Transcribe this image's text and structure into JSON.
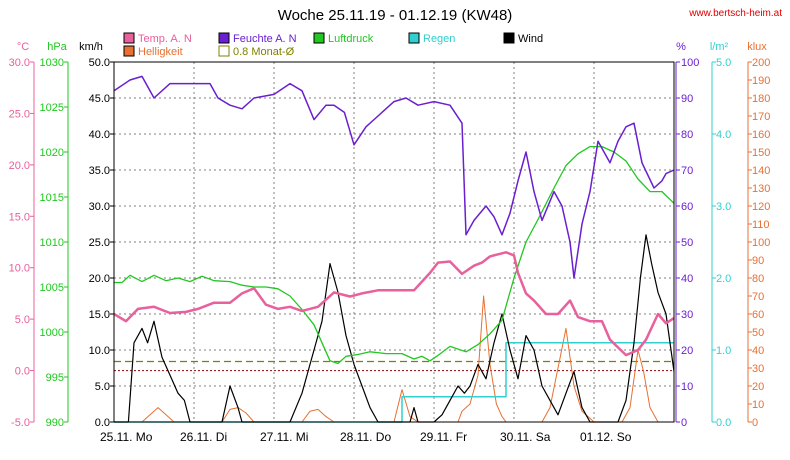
{
  "chart_data": {
    "type": "line",
    "title": "Woche 25.11.19 - 01.12.19 (KW48)",
    "source": "www.bertsch-heim.at",
    "colors": {
      "temp": "#e8609c",
      "feuchte": "#6a1fd0",
      "luftdruck": "#20c820",
      "wind": "#000000",
      "helligkeit": "#e87030",
      "regen": "#30d0d0",
      "monat": "#808000",
      "zero": "#900000",
      "grid": "#808080"
    },
    "legend": [
      {
        "key": "temp",
        "label": "Temp. A. N",
        "color": "#e8609c",
        "style": "fill"
      },
      {
        "key": "feuchte",
        "label": "Feuchte A. N",
        "color": "#6a1fd0",
        "style": "fill"
      },
      {
        "key": "luftdruck",
        "label": "Luftdruck",
        "color": "#20c820",
        "style": "fill"
      },
      {
        "key": "regen",
        "label": "Regen",
        "color": "#30d0d0",
        "style": "fill"
      },
      {
        "key": "wind",
        "label": "Wind",
        "color": "#000000",
        "style": "fill"
      },
      {
        "key": "helligkeit",
        "label": "Helligkeit",
        "color": "#e87030",
        "style": "fill"
      },
      {
        "key": "monat",
        "label": "0.8 Monat-Ø",
        "color": "#808000",
        "style": "outline"
      }
    ],
    "axes": {
      "temp": {
        "unit": "°C",
        "ticks": [
          "30.0",
          "25.0",
          "20.0",
          "15.0",
          "10.0",
          "5.0",
          "0.0",
          "-5.0"
        ],
        "min": -5,
        "max": 30,
        "color": "#e8609c"
      },
      "luftdruck": {
        "unit": "hPa",
        "ticks": [
          "1030",
          "1025",
          "1020",
          "1015",
          "1010",
          "1005",
          "1000",
          "995",
          "990"
        ],
        "min": 990,
        "max": 1030,
        "color": "#20c820"
      },
      "wind": {
        "unit": "km/h",
        "ticks": [
          "50.0",
          "45.0",
          "40.0",
          "35.0",
          "30.0",
          "25.0",
          "20.0",
          "15.0",
          "10.0",
          "5.0",
          "0.0"
        ],
        "min": 0,
        "max": 50,
        "color": "#000000"
      },
      "feuchte": {
        "unit": "%",
        "ticks": [
          "100",
          "90",
          "80",
          "70",
          "60",
          "50",
          "40",
          "30",
          "20",
          "10",
          "0"
        ],
        "min": 0,
        "max": 100,
        "color": "#6a1fd0"
      },
      "regen": {
        "unit": "l/m²",
        "ticks": [
          "5.0",
          "4.0",
          "3.0",
          "2.0",
          "1.0",
          "0.0"
        ],
        "min": 0,
        "max": 5,
        "color": "#30d0d0"
      },
      "helligkeit": {
        "unit": "klux",
        "ticks": [
          "200",
          "190",
          "180",
          "170",
          "160",
          "150",
          "140",
          "130",
          "120",
          "110",
          "100",
          "90",
          "80",
          "70",
          "60",
          "50",
          "40",
          "30",
          "20",
          "10",
          "0"
        ],
        "min": 0,
        "max": 200,
        "color": "#e87030"
      }
    },
    "x_labels": [
      "25.11. Mo",
      "26.11. Di",
      "27.11. Mi",
      "28.11. Do",
      "29.11. Fr",
      "30.11. Sa",
      "01.12. So"
    ],
    "x_range": [
      0,
      7
    ],
    "grid": true,
    "reference_lines": {
      "monat_avg_wind_kmh": 8.4,
      "temp_zero_c": 0
    },
    "series": {
      "feuchte": [
        [
          0,
          92
        ],
        [
          0.2,
          95
        ],
        [
          0.35,
          96
        ],
        [
          0.5,
          90
        ],
        [
          0.7,
          94
        ],
        [
          1.0,
          94
        ],
        [
          1.2,
          94
        ],
        [
          1.3,
          90
        ],
        [
          1.45,
          88
        ],
        [
          1.6,
          87
        ],
        [
          1.75,
          90
        ],
        [
          2.0,
          91
        ],
        [
          2.2,
          94
        ],
        [
          2.35,
          92
        ],
        [
          2.5,
          84
        ],
        [
          2.65,
          88
        ],
        [
          2.75,
          88
        ],
        [
          2.88,
          86
        ],
        [
          3.0,
          77
        ],
        [
          3.15,
          82
        ],
        [
          3.3,
          85
        ],
        [
          3.5,
          89
        ],
        [
          3.65,
          90
        ],
        [
          3.8,
          88
        ],
        [
          4.0,
          89
        ],
        [
          4.2,
          88
        ],
        [
          4.35,
          83
        ],
        [
          4.4,
          52
        ],
        [
          4.5,
          56
        ],
        [
          4.65,
          60
        ],
        [
          4.75,
          57
        ],
        [
          4.85,
          52
        ],
        [
          4.95,
          58
        ],
        [
          5.05,
          67
        ],
        [
          5.15,
          75
        ],
        [
          5.25,
          64
        ],
        [
          5.35,
          56
        ],
        [
          5.5,
          64
        ],
        [
          5.6,
          60
        ],
        [
          5.7,
          50
        ],
        [
          5.75,
          40
        ],
        [
          5.85,
          55
        ],
        [
          5.95,
          64
        ],
        [
          6.05,
          78
        ],
        [
          6.2,
          72
        ],
        [
          6.3,
          78
        ],
        [
          6.4,
          82
        ],
        [
          6.5,
          83
        ],
        [
          6.6,
          72
        ],
        [
          6.75,
          65
        ],
        [
          6.85,
          67
        ],
        [
          6.9,
          69
        ],
        [
          7.0,
          70
        ]
      ],
      "temp": [
        [
          0,
          5.5
        ],
        [
          0.15,
          4.8
        ],
        [
          0.3,
          6.0
        ],
        [
          0.5,
          6.2
        ],
        [
          0.7,
          5.6
        ],
        [
          0.9,
          5.7
        ],
        [
          1.05,
          6.0
        ],
        [
          1.25,
          6.6
        ],
        [
          1.45,
          6.6
        ],
        [
          1.6,
          7.5
        ],
        [
          1.75,
          8.0
        ],
        [
          1.9,
          6.4
        ],
        [
          2.05,
          6.0
        ],
        [
          2.2,
          6.2
        ],
        [
          2.35,
          5.8
        ],
        [
          2.55,
          6.2
        ],
        [
          2.75,
          7.6
        ],
        [
          2.95,
          7.2
        ],
        [
          3.1,
          7.5
        ],
        [
          3.3,
          7.8
        ],
        [
          3.5,
          7.8
        ],
        [
          3.75,
          7.8
        ],
        [
          3.95,
          9.5
        ],
        [
          4.05,
          10.5
        ],
        [
          4.2,
          10.6
        ],
        [
          4.35,
          9.4
        ],
        [
          4.5,
          10.2
        ],
        [
          4.6,
          10.5
        ],
        [
          4.7,
          11.1
        ],
        [
          4.8,
          11.3
        ],
        [
          4.9,
          11.5
        ],
        [
          5.0,
          11.2
        ],
        [
          5.05,
          9.5
        ],
        [
          5.15,
          7.5
        ],
        [
          5.25,
          6.8
        ],
        [
          5.4,
          5.5
        ],
        [
          5.55,
          5.5
        ],
        [
          5.7,
          6.8
        ],
        [
          5.8,
          5.2
        ],
        [
          5.95,
          4.8
        ],
        [
          6.1,
          4.8
        ],
        [
          6.2,
          3.0
        ],
        [
          6.4,
          1.5
        ],
        [
          6.55,
          2.0
        ],
        [
          6.65,
          3.0
        ],
        [
          6.8,
          5.5
        ],
        [
          6.9,
          4.6
        ],
        [
          7.0,
          5.1
        ]
      ],
      "luftdruck": [
        [
          0,
          1005.5
        ],
        [
          0.1,
          1005.5
        ],
        [
          0.2,
          1006.3
        ],
        [
          0.35,
          1005.6
        ],
        [
          0.5,
          1006.3
        ],
        [
          0.65,
          1005.7
        ],
        [
          0.8,
          1006.0
        ],
        [
          0.95,
          1005.6
        ],
        [
          1.1,
          1006.2
        ],
        [
          1.25,
          1005.7
        ],
        [
          1.45,
          1005.6
        ],
        [
          1.6,
          1005.2
        ],
        [
          1.75,
          1005.0
        ],
        [
          1.9,
          1005.0
        ],
        [
          2.05,
          1004.8
        ],
        [
          2.2,
          1004.0
        ],
        [
          2.35,
          1002.5
        ],
        [
          2.5,
          1000.8
        ],
        [
          2.6,
          998.8
        ],
        [
          2.7,
          996.8
        ],
        [
          2.8,
          996.5
        ],
        [
          2.9,
          997.3
        ],
        [
          3.05,
          997.5
        ],
        [
          3.2,
          997.8
        ],
        [
          3.4,
          997.6
        ],
        [
          3.6,
          997.6
        ],
        [
          3.75,
          997.0
        ],
        [
          3.85,
          997.3
        ],
        [
          3.95,
          996.8
        ],
        [
          4.05,
          997.4
        ],
        [
          4.2,
          998.4
        ],
        [
          4.4,
          997.8
        ],
        [
          4.55,
          998.6
        ],
        [
          4.7,
          999.8
        ],
        [
          4.85,
          1001.3
        ],
        [
          5.0,
          1006.0
        ],
        [
          5.15,
          1010.0
        ],
        [
          5.3,
          1012.5
        ],
        [
          5.5,
          1016.0
        ],
        [
          5.65,
          1018.5
        ],
        [
          5.8,
          1019.8
        ],
        [
          5.95,
          1020.6
        ],
        [
          6.1,
          1020.6
        ],
        [
          6.25,
          1020.0
        ],
        [
          6.4,
          1019.0
        ],
        [
          6.55,
          1017.0
        ],
        [
          6.7,
          1015.6
        ],
        [
          6.85,
          1015.6
        ],
        [
          7.0,
          1014.3
        ]
      ],
      "wind": [
        [
          0,
          0
        ],
        [
          0.18,
          0
        ],
        [
          0.25,
          11
        ],
        [
          0.35,
          13
        ],
        [
          0.42,
          11
        ],
        [
          0.5,
          14
        ],
        [
          0.6,
          9
        ],
        [
          0.72,
          6
        ],
        [
          0.8,
          4
        ],
        [
          0.88,
          3
        ],
        [
          0.95,
          0
        ],
        [
          1.05,
          0
        ],
        [
          1.35,
          0
        ],
        [
          1.45,
          5
        ],
        [
          1.55,
          2
        ],
        [
          1.6,
          0
        ],
        [
          2.2,
          0
        ],
        [
          2.35,
          4
        ],
        [
          2.5,
          10
        ],
        [
          2.6,
          14
        ],
        [
          2.7,
          22
        ],
        [
          2.8,
          18
        ],
        [
          2.9,
          12
        ],
        [
          3.0,
          8
        ],
        [
          3.1,
          5
        ],
        [
          3.2,
          2
        ],
        [
          3.3,
          0
        ],
        [
          3.7,
          0
        ],
        [
          3.75,
          2
        ],
        [
          3.8,
          0
        ],
        [
          4.0,
          0
        ],
        [
          4.1,
          1
        ],
        [
          4.2,
          3
        ],
        [
          4.3,
          5
        ],
        [
          4.38,
          4
        ],
        [
          4.45,
          5
        ],
        [
          4.55,
          8
        ],
        [
          4.65,
          6
        ],
        [
          4.75,
          11
        ],
        [
          4.85,
          15
        ],
        [
          4.95,
          10
        ],
        [
          5.05,
          6
        ],
        [
          5.15,
          12
        ],
        [
          5.25,
          10
        ],
        [
          5.35,
          5
        ],
        [
          5.45,
          3
        ],
        [
          5.55,
          1
        ],
        [
          5.65,
          4
        ],
        [
          5.75,
          7
        ],
        [
          5.85,
          2
        ],
        [
          5.95,
          0
        ],
        [
          6.3,
          0
        ],
        [
          6.4,
          3
        ],
        [
          6.5,
          11
        ],
        [
          6.58,
          20
        ],
        [
          6.65,
          26
        ],
        [
          6.72,
          22
        ],
        [
          6.8,
          18
        ],
        [
          6.9,
          15
        ],
        [
          7.0,
          7
        ]
      ],
      "helligkeit": [
        [
          0,
          0
        ],
        [
          0.35,
          0
        ],
        [
          0.45,
          4
        ],
        [
          0.55,
          8
        ],
        [
          0.65,
          4
        ],
        [
          0.75,
          0
        ],
        [
          1.35,
          0
        ],
        [
          1.45,
          7
        ],
        [
          1.55,
          8
        ],
        [
          1.65,
          5
        ],
        [
          1.75,
          0
        ],
        [
          2.35,
          0
        ],
        [
          2.45,
          6
        ],
        [
          2.55,
          7
        ],
        [
          2.65,
          3
        ],
        [
          2.75,
          0
        ],
        [
          3.5,
          0
        ],
        [
          3.6,
          18
        ],
        [
          3.7,
          3
        ],
        [
          3.8,
          0
        ],
        [
          4.3,
          0
        ],
        [
          4.35,
          6
        ],
        [
          4.45,
          10
        ],
        [
          4.55,
          26
        ],
        [
          4.62,
          70
        ],
        [
          4.7,
          32
        ],
        [
          4.78,
          10
        ],
        [
          4.85,
          3
        ],
        [
          4.9,
          0
        ],
        [
          5.35,
          0
        ],
        [
          5.45,
          8
        ],
        [
          5.55,
          30
        ],
        [
          5.65,
          52
        ],
        [
          5.75,
          20
        ],
        [
          5.85,
          6
        ],
        [
          5.95,
          2
        ],
        [
          6.0,
          0
        ],
        [
          6.35,
          0
        ],
        [
          6.45,
          8
        ],
        [
          6.55,
          40
        ],
        [
          6.62,
          28
        ],
        [
          6.7,
          8
        ],
        [
          6.8,
          0
        ],
        [
          7.0,
          0
        ]
      ],
      "regen": [
        [
          0,
          0
        ],
        [
          3.6,
          0
        ],
        [
          3.6,
          0.35
        ],
        [
          4.9,
          0.35
        ],
        [
          4.9,
          1.1
        ],
        [
          7.0,
          1.1
        ]
      ]
    }
  }
}
